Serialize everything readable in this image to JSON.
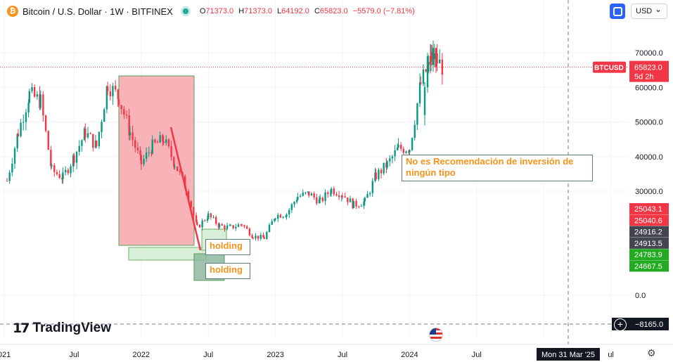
{
  "header": {
    "title": "Bitcoin / U.S. Dollar · 1W · BITFINEX",
    "coin_glyph": "₿",
    "ohlc": {
      "o_label": "O",
      "o": "71373.0",
      "h_label": "H",
      "h": "71373.0",
      "l_label": "L",
      "l": "64192.0",
      "c_label": "C",
      "c": "65823.0",
      "change": "−5579.0 (−7.81%)"
    },
    "currency": "USD"
  },
  "logo": {
    "mark": "17",
    "name": "TradingView"
  },
  "colors": {
    "up": "#089981",
    "down": "#f23645",
    "price_line": "#f23645",
    "zone_red": "#f7a6ad",
    "zone_green": "#d7efd7",
    "zone_green_dark": "#8fb9a0",
    "annotation_text": "#f7931a",
    "tag_dark": "#434651",
    "tag_green": "#22ab21"
  },
  "annotations": {
    "note": "No es Recomendación de inversión de ningún tipo",
    "holding1": "holding",
    "holding2": "holding"
  },
  "crosshair": {
    "time_label": "Mon 31 Mar '25",
    "price_label": "−8165.0"
  },
  "chart_data": {
    "type": "candlestick",
    "symbol": "BTCUSD",
    "timeframe": "1W",
    "exchange": "BITFINEX",
    "ylim": [
      -8165,
      78000
    ],
    "y_ticks": [
      "70000.0",
      "60000.0",
      "50000.0",
      "40000.0",
      "30000.0",
      "0.0"
    ],
    "y_tick_values": [
      70000,
      60000,
      50000,
      40000,
      30000,
      0
    ],
    "x_ticks": [
      "021",
      "Jul",
      "2022",
      "Jul",
      "2023",
      "Jul",
      "2024",
      "Jul",
      "20",
      "ul"
    ],
    "last_price": {
      "label": "BTCUSD",
      "value": "65823.0",
      "countdown": "5d 2h"
    },
    "price_tags": [
      {
        "value": "25043.1",
        "kind": "red",
        "v": 25043.1
      },
      {
        "value": "25040.6",
        "kind": "red",
        "v": 25040.6
      },
      {
        "value": "24916.2",
        "kind": "dark",
        "v": 24916.2
      },
      {
        "value": "24913.5",
        "kind": "dark",
        "v": 24913.5
      },
      {
        "value": "24783.9",
        "kind": "green",
        "v": 24783.9
      },
      {
        "value": "24667.5",
        "kind": "green",
        "v": 24667.5
      }
    ],
    "close_path": [
      [
        "2021-01",
        33000
      ],
      [
        "2021-02",
        47000
      ],
      [
        "2021-03",
        58000
      ],
      [
        "2021-04",
        56000
      ],
      [
        "2021-05",
        36000
      ],
      [
        "2021-06",
        34000
      ],
      [
        "2021-07",
        40000
      ],
      [
        "2021-08",
        47000
      ],
      [
        "2021-09",
        43000
      ],
      [
        "2021-10",
        61000
      ],
      [
        "2021-11",
        57000
      ],
      [
        "2021-12",
        47000
      ],
      [
        "2022-01",
        38000
      ],
      [
        "2022-02",
        43000
      ],
      [
        "2022-03",
        45000
      ],
      [
        "2022-04",
        38000
      ],
      [
        "2022-05",
        31000
      ],
      [
        "2022-06",
        19500
      ],
      [
        "2022-07",
        23000
      ],
      [
        "2022-08",
        20000
      ],
      [
        "2022-09",
        19500
      ],
      [
        "2022-10",
        20500
      ],
      [
        "2022-11",
        17000
      ],
      [
        "2022-12",
        16500
      ],
      [
        "2023-01",
        23000
      ],
      [
        "2023-02",
        23500
      ],
      [
        "2023-03",
        28500
      ],
      [
        "2023-04",
        29300
      ],
      [
        "2023-05",
        27000
      ],
      [
        "2023-06",
        30500
      ],
      [
        "2023-07",
        29200
      ],
      [
        "2023-08",
        26000
      ],
      [
        "2023-09",
        27000
      ],
      [
        "2023-10",
        34500
      ],
      [
        "2023-11",
        37700
      ],
      [
        "2023-12",
        42300
      ],
      [
        "2024-01",
        42500
      ],
      [
        "2024-02",
        61000
      ],
      [
        "2024-03",
        69000
      ],
      [
        "2024-04",
        65823
      ]
    ]
  }
}
